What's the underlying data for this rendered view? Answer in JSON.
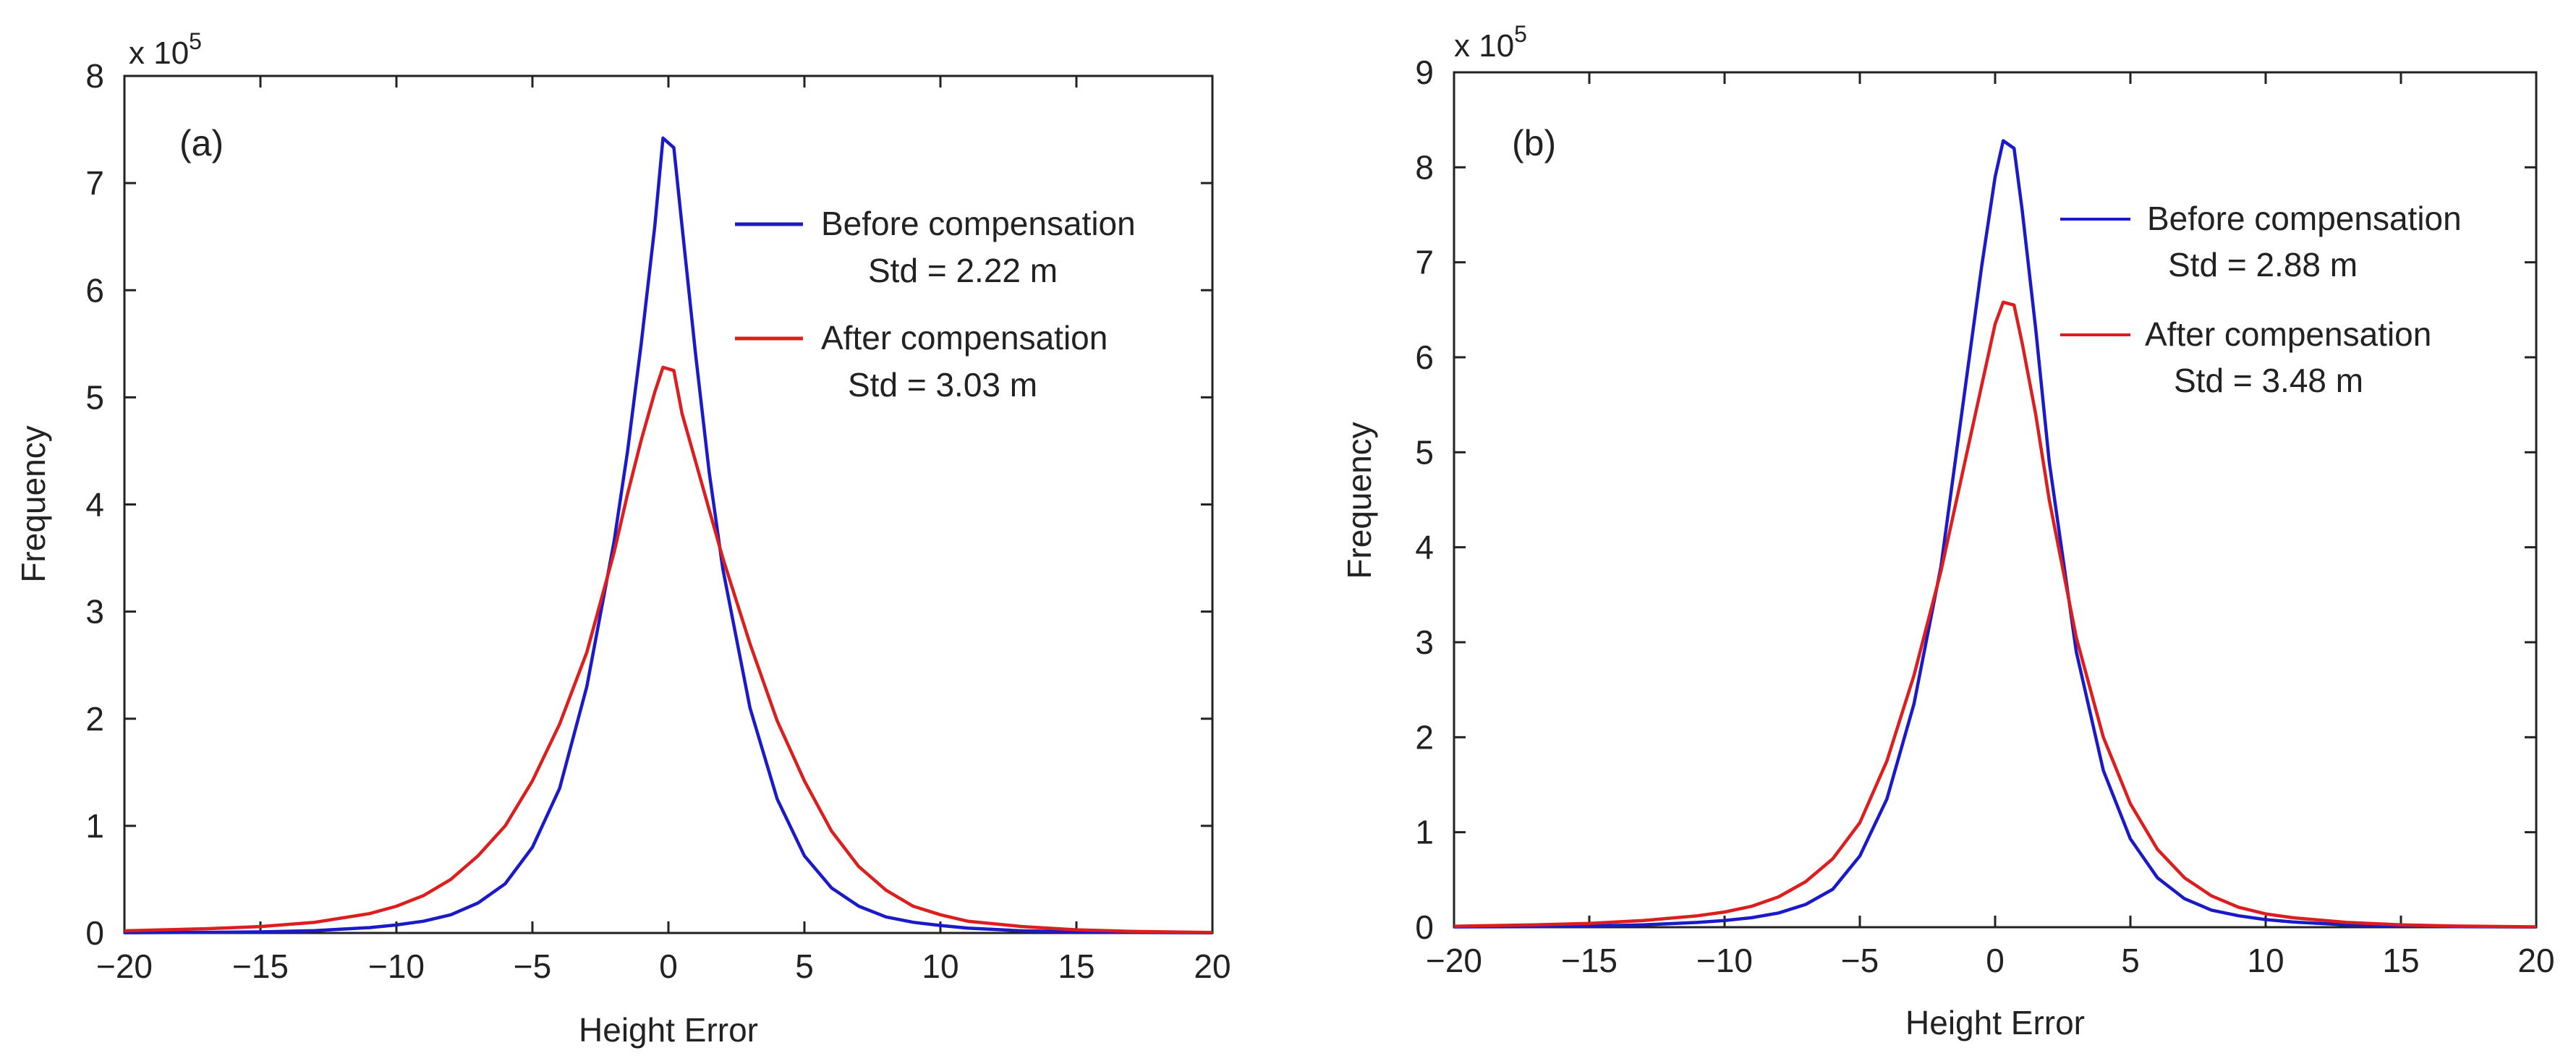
{
  "chart_data": [
    {
      "type": "line",
      "panel_label": "(a)",
      "xlabel": "Height Error",
      "ylabel": "Frequency",
      "y_multiplier": {
        "base": "x 10",
        "exponent": "5"
      },
      "xlim": [
        -20,
        20
      ],
      "ylim": [
        0,
        8
      ],
      "xticks": [
        "−20",
        "−15",
        "−10",
        "−5",
        "0",
        "5",
        "10",
        "15",
        "20"
      ],
      "yticks": [
        "0",
        "1",
        "2",
        "3",
        "4",
        "5",
        "6",
        "7",
        "8"
      ],
      "series": [
        {
          "name": "Before compensation",
          "stat": "Std = 2.22 m",
          "color": "#1a1ac8",
          "x": [
            -20,
            -17,
            -15,
            -13,
            -11,
            -10,
            -9,
            -8,
            -7,
            -6,
            -5,
            -4,
            -3,
            -2,
            -1.5,
            -1,
            -0.5,
            -0.2,
            0.2,
            0.5,
            1,
            1.5,
            2,
            3,
            4,
            5,
            6,
            7,
            8,
            9,
            10,
            11,
            13,
            15,
            17,
            20
          ],
          "y": [
            0.003,
            0.006,
            0.01,
            0.022,
            0.05,
            0.075,
            0.11,
            0.17,
            0.28,
            0.46,
            0.8,
            1.35,
            2.3,
            3.65,
            4.5,
            5.5,
            6.6,
            7.42,
            7.33,
            6.6,
            5.4,
            4.3,
            3.4,
            2.1,
            1.25,
            0.72,
            0.42,
            0.25,
            0.15,
            0.1,
            0.07,
            0.045,
            0.02,
            0.01,
            0.005,
            0.002
          ]
        },
        {
          "name": "After compensation",
          "stat": "Std = 3.03 m",
          "color": "#dc1e1e",
          "x": [
            -20,
            -17,
            -15,
            -13,
            -11,
            -10,
            -9,
            -8,
            -7,
            -6,
            -5,
            -4,
            -3,
            -2,
            -1.5,
            -1,
            -0.5,
            -0.2,
            0.2,
            0.5,
            1,
            1.5,
            2,
            3,
            4,
            5,
            6,
            7,
            8,
            9,
            10,
            11,
            13,
            15,
            17,
            20
          ],
          "y": [
            0.02,
            0.04,
            0.06,
            0.1,
            0.18,
            0.25,
            0.35,
            0.5,
            0.72,
            1.0,
            1.42,
            1.95,
            2.62,
            3.55,
            4.1,
            4.6,
            5.05,
            5.28,
            5.25,
            4.85,
            4.4,
            3.95,
            3.5,
            2.7,
            1.98,
            1.42,
            0.95,
            0.62,
            0.4,
            0.25,
            0.17,
            0.11,
            0.06,
            0.03,
            0.015,
            0.005
          ]
        }
      ]
    },
    {
      "type": "line",
      "panel_label": "(b)",
      "xlabel": "Height Error",
      "ylabel": "Frequency",
      "y_multiplier": {
        "base": "x 10",
        "exponent": "5"
      },
      "xlim": [
        -20,
        20
      ],
      "ylim": [
        0,
        9
      ],
      "xticks": [
        "−20",
        "−15",
        "−10",
        "−5",
        "0",
        "5",
        "10",
        "15",
        "20"
      ],
      "yticks": [
        "0",
        "1",
        "2",
        "3",
        "4",
        "5",
        "6",
        "7",
        "8",
        "9"
      ],
      "series": [
        {
          "name": "Before compensation",
          "stat": "Std = 2.88 m",
          "color": "#1a1ac8",
          "x": [
            -20,
            -17,
            -15,
            -13,
            -11,
            -10,
            -9,
            -8,
            -7,
            -6,
            -5,
            -4,
            -3,
            -2,
            -1.5,
            -1,
            -0.5,
            0,
            0.3,
            0.7,
            1,
            1.5,
            2,
            3,
            4,
            5,
            6,
            7,
            8,
            9,
            10,
            11,
            13,
            15,
            17,
            20
          ],
          "y": [
            0.003,
            0.006,
            0.012,
            0.025,
            0.05,
            0.07,
            0.1,
            0.15,
            0.24,
            0.4,
            0.75,
            1.35,
            2.35,
            3.8,
            4.85,
            5.9,
            6.95,
            7.9,
            8.28,
            8.2,
            7.55,
            6.3,
            4.9,
            2.9,
            1.65,
            0.93,
            0.52,
            0.3,
            0.18,
            0.12,
            0.08,
            0.055,
            0.025,
            0.012,
            0.006,
            0.002
          ]
        },
        {
          "name": "After compensation",
          "stat": "Std = 3.48 m",
          "color": "#dc1e1e",
          "x": [
            -20,
            -17,
            -15,
            -13,
            -11,
            -10,
            -9,
            -8,
            -7,
            -6,
            -5,
            -4,
            -3,
            -2,
            -1.5,
            -1,
            -0.5,
            0,
            0.3,
            0.7,
            1,
            1.5,
            2,
            3,
            4,
            5,
            6,
            7,
            8,
            9,
            10,
            11,
            13,
            15,
            17,
            20
          ],
          "y": [
            0.01,
            0.025,
            0.04,
            0.07,
            0.12,
            0.16,
            0.22,
            0.32,
            0.48,
            0.72,
            1.1,
            1.75,
            2.65,
            3.75,
            4.4,
            5.05,
            5.7,
            6.35,
            6.58,
            6.55,
            6.15,
            5.4,
            4.5,
            3.05,
            2.0,
            1.3,
            0.82,
            0.52,
            0.33,
            0.21,
            0.14,
            0.1,
            0.05,
            0.025,
            0.012,
            0.004
          ]
        }
      ]
    }
  ]
}
